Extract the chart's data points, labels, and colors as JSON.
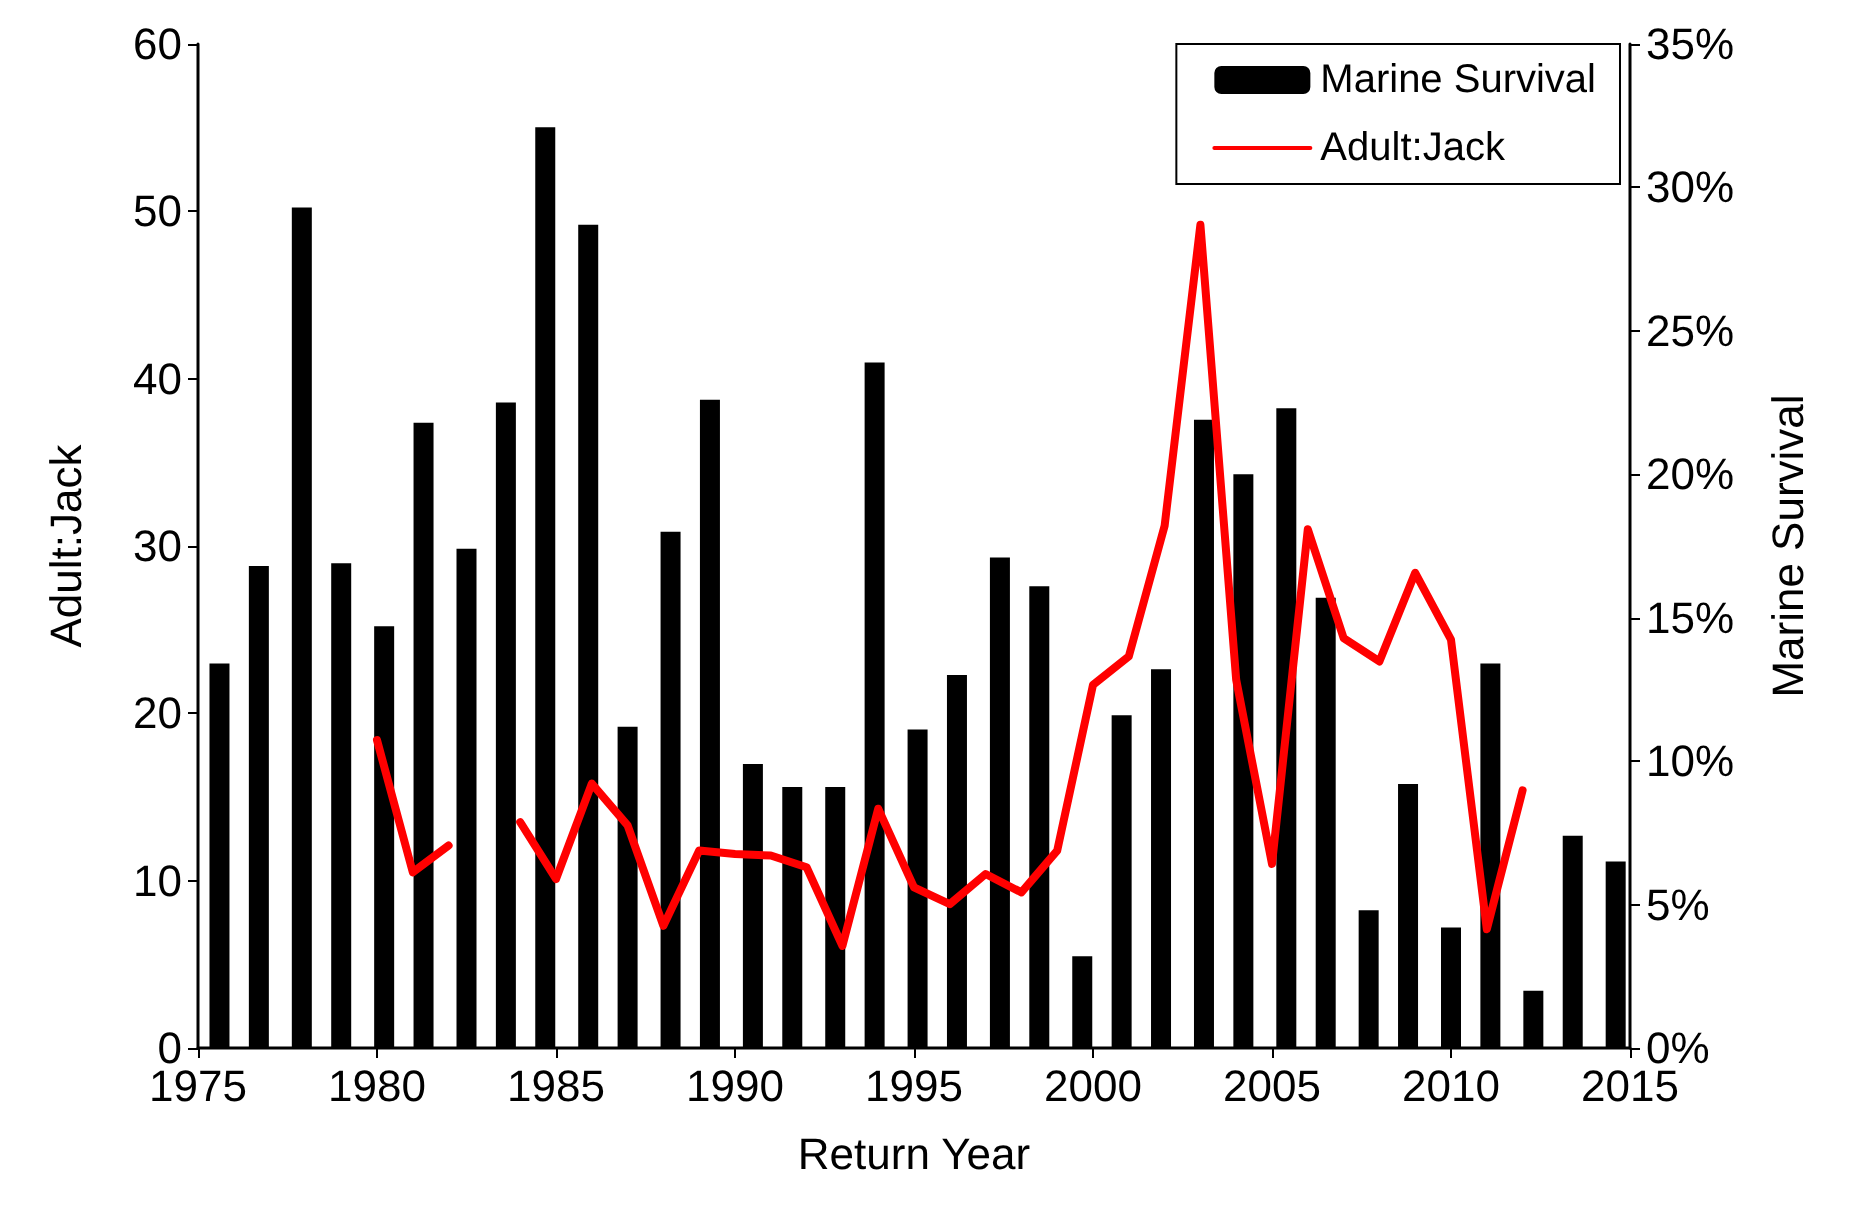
{
  "chart_data": {
    "type": "bar",
    "xlabel": "Return Year",
    "ylabel": "Adult:Jack",
    "y2label": "Marine Survival",
    "xlim": [
      1975,
      2015
    ],
    "xticks": [
      1975,
      1980,
      1985,
      1990,
      1995,
      2000,
      2005,
      2010,
      2015
    ],
    "ylim": [
      0,
      60
    ],
    "yticks": [
      0,
      10,
      20,
      30,
      40,
      50,
      60
    ],
    "y2lim": [
      0,
      35
    ],
    "y2ticks": [
      {
        "value": 0,
        "label": "0%"
      },
      {
        "value": 5,
        "label": "5%"
      },
      {
        "value": 10,
        "label": "10%"
      },
      {
        "value": 15,
        "label": "15%"
      },
      {
        "value": 20,
        "label": "20%"
      },
      {
        "value": 25,
        "label": "25%"
      },
      {
        "value": 30,
        "label": "30%"
      },
      {
        "value": 35,
        "label": "35%"
      }
    ],
    "legend": "top right",
    "grid": false,
    "marker": "none",
    "line_style": "solid",
    "series": [
      {
        "name": "Marine Survival",
        "axis": "y2",
        "color": "#000000",
        "x": [
          1975.6,
          1976.7,
          1977.9,
          1979.0,
          1980.2,
          1981.3,
          1982.5,
          1983.6,
          1984.7,
          1985.9,
          1987.0,
          1988.2,
          1989.3,
          1990.5,
          1991.6,
          1992.8,
          1993.9,
          1995.1,
          1996.2,
          1997.4,
          1998.5,
          1999.7,
          2000.8,
          2001.9,
          2003.1,
          2004.2,
          2005.4,
          2006.5,
          2007.7,
          2008.8,
          2010.0,
          2011.1,
          2012.3,
          2013.4,
          2014.6
        ],
        "values": [
          13.4,
          16.8,
          29.3,
          16.9,
          14.7,
          21.8,
          17.4,
          22.5,
          32.1,
          28.7,
          11.2,
          18.0,
          22.6,
          9.9,
          9.1,
          9.1,
          23.9,
          11.1,
          13.0,
          17.1,
          16.1,
          3.2,
          11.6,
          13.2,
          21.9,
          20.0,
          22.3,
          15.7,
          4.8,
          9.2,
          4.2,
          13.4,
          2.0,
          7.4,
          6.5
        ]
      },
      {
        "name": "Adult:Jack",
        "type": "line",
        "color": "#ff0000",
        "x": [
          1980,
          1981,
          1982,
          1983,
          1984,
          1985,
          1986,
          1987,
          1988,
          1989,
          1990,
          1991,
          1992,
          1993,
          1994,
          1995,
          1996,
          1997,
          1998,
          1999,
          2000,
          2001,
          2002,
          2003,
          2004,
          2005,
          2006,
          2007,
          2008,
          2009,
          2010,
          2011,
          2012
        ],
        "values": [
          18.4,
          10.5,
          12.1,
          null,
          13.5,
          10.1,
          15.8,
          13.3,
          7.3,
          11.8,
          11.6,
          11.5,
          10.8,
          6.1,
          14.3,
          9.6,
          8.6,
          10.4,
          9.3,
          11.8,
          21.7,
          23.4,
          31.2,
          49.2,
          22.0,
          11.0,
          31.0,
          24.5,
          23.1,
          28.4,
          24.4,
          7.1,
          15.4
        ]
      }
    ]
  }
}
